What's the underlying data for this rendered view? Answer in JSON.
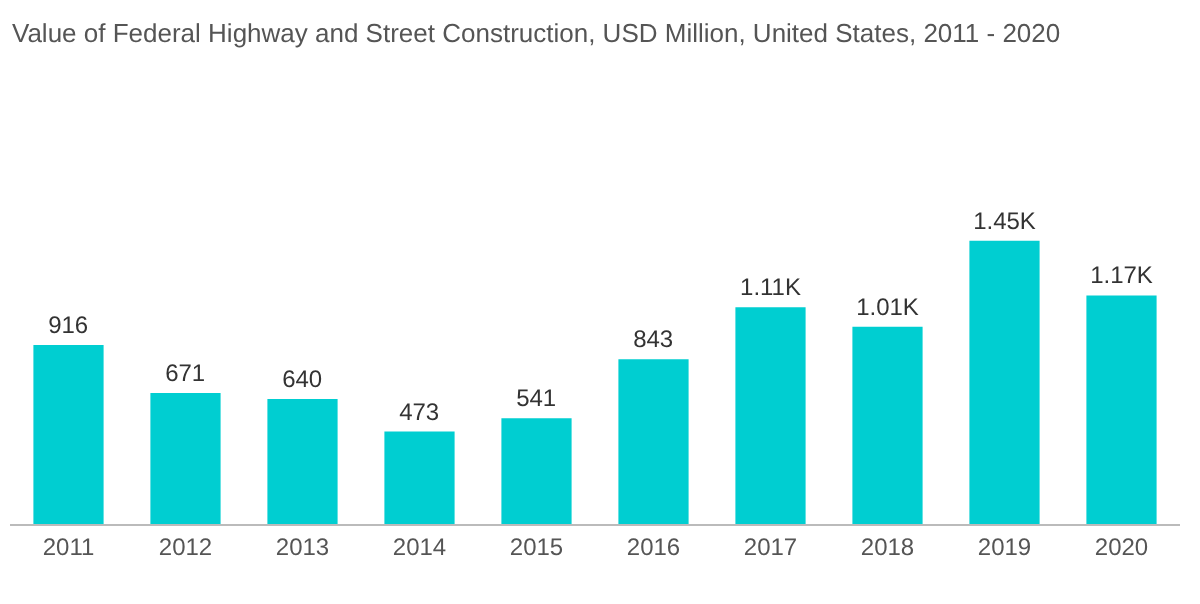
{
  "chart_data": {
    "type": "bar",
    "title": "Value of Federal Highway and Street Construction, USD Million, United States, 2011 - 2020",
    "categories": [
      "2011",
      "2012",
      "2013",
      "2014",
      "2015",
      "2016",
      "2017",
      "2018",
      "2019",
      "2020"
    ],
    "values": [
      916,
      671,
      640,
      473,
      541,
      843,
      1110,
      1010,
      1450,
      1170
    ],
    "value_labels": [
      "916",
      "671",
      "640",
      "473",
      "541",
      "843",
      "1.11K",
      "1.01K",
      "1.45K",
      "1.17K"
    ],
    "color": "#00ced1"
  }
}
